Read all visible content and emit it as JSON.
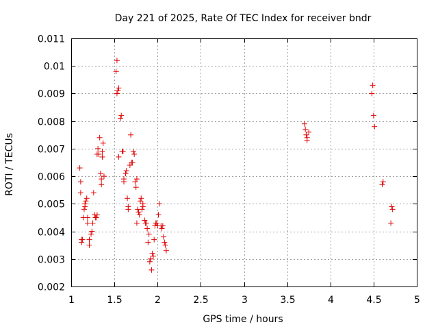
{
  "chart_data": {
    "type": "scatter",
    "title": "Day 221 of 2025, Rate Of TEC Index for receiver bndr",
    "xlabel": "GPS time / hours",
    "ylabel": "ROTI / TECUs",
    "xlim": [
      1,
      5
    ],
    "ylim": [
      0.002,
      0.011
    ],
    "grid": true,
    "marker": "+",
    "color": "#e00000",
    "x_ticks": [
      1,
      1.5,
      2,
      2.5,
      3,
      3.5,
      4,
      4.5,
      5
    ],
    "x_tick_labels": [
      "1",
      "1.5",
      "2",
      "2.5",
      "3",
      "3.5",
      "4",
      "4.5",
      "5"
    ],
    "y_ticks": [
      0.002,
      0.003,
      0.004,
      0.005,
      0.006,
      0.007,
      0.008,
      0.009,
      0.01,
      0.011
    ],
    "y_tick_labels": [
      "0.002",
      "0.003",
      "0.004",
      "0.005",
      "0.006",
      "0.007",
      "0.008",
      "0.009",
      "0.01",
      "0.011"
    ],
    "series": [
      {
        "name": "ROTI",
        "points": [
          [
            1.1,
            0.0063
          ],
          [
            1.11,
            0.0058
          ],
          [
            1.11,
            0.0054
          ],
          [
            1.12,
            0.0037
          ],
          [
            1.12,
            0.0036
          ],
          [
            1.13,
            0.0037
          ],
          [
            1.14,
            0.0045
          ],
          [
            1.15,
            0.0048
          ],
          [
            1.16,
            0.0049
          ],
          [
            1.16,
            0.005
          ],
          [
            1.17,
            0.0051
          ],
          [
            1.18,
            0.0052
          ],
          [
            1.19,
            0.0045
          ],
          [
            1.19,
            0.0043
          ],
          [
            1.21,
            0.0037
          ],
          [
            1.21,
            0.0035
          ],
          [
            1.23,
            0.0039
          ],
          [
            1.24,
            0.004
          ],
          [
            1.25,
            0.0043
          ],
          [
            1.26,
            0.0054
          ],
          [
            1.27,
            0.0046
          ],
          [
            1.28,
            0.0045
          ],
          [
            1.29,
            0.0045
          ],
          [
            1.3,
            0.0046
          ],
          [
            1.3,
            0.0068
          ],
          [
            1.31,
            0.007
          ],
          [
            1.32,
            0.0068
          ],
          [
            1.33,
            0.0074
          ],
          [
            1.34,
            0.0061
          ],
          [
            1.35,
            0.0059
          ],
          [
            1.35,
            0.0057
          ],
          [
            1.36,
            0.0069
          ],
          [
            1.36,
            0.0067
          ],
          [
            1.37,
            0.0072
          ],
          [
            1.38,
            0.006
          ],
          [
            1.52,
            0.0098
          ],
          [
            1.53,
            0.0102
          ],
          [
            1.53,
            0.009
          ],
          [
            1.54,
            0.0091
          ],
          [
            1.55,
            0.0092
          ],
          [
            1.55,
            0.0067
          ],
          [
            1.57,
            0.0081
          ],
          [
            1.58,
            0.0082
          ],
          [
            1.59,
            0.0069
          ],
          [
            1.6,
            0.0069
          ],
          [
            1.61,
            0.0059
          ],
          [
            1.61,
            0.0058
          ],
          [
            1.63,
            0.0061
          ],
          [
            1.64,
            0.0062
          ],
          [
            1.65,
            0.0052
          ],
          [
            1.66,
            0.0049
          ],
          [
            1.66,
            0.0048
          ],
          [
            1.68,
            0.0064
          ],
          [
            1.69,
            0.0075
          ],
          [
            1.7,
            0.0065
          ],
          [
            1.71,
            0.0065
          ],
          [
            1.72,
            0.0069
          ],
          [
            1.73,
            0.0068
          ],
          [
            1.74,
            0.0058
          ],
          [
            1.75,
            0.0056
          ],
          [
            1.76,
            0.0059
          ],
          [
            1.76,
            0.0043
          ],
          [
            1.77,
            0.0048
          ],
          [
            1.78,
            0.0047
          ],
          [
            1.79,
            0.0046
          ],
          [
            1.8,
            0.0051
          ],
          [
            1.81,
            0.0052
          ],
          [
            1.82,
            0.0048
          ],
          [
            1.83,
            0.0049
          ],
          [
            1.83,
            0.005
          ],
          [
            1.85,
            0.0044
          ],
          [
            1.86,
            0.0043
          ],
          [
            1.87,
            0.0043
          ],
          [
            1.88,
            0.0041
          ],
          [
            1.89,
            0.0036
          ],
          [
            1.9,
            0.0039
          ],
          [
            1.91,
            0.0029
          ],
          [
            1.92,
            0.003
          ],
          [
            1.93,
            0.0026
          ],
          [
            1.94,
            0.0032
          ],
          [
            1.95,
            0.0031
          ],
          [
            1.96,
            0.0037
          ],
          [
            1.97,
            0.0042
          ],
          [
            1.98,
            0.0043
          ],
          [
            1.99,
            0.0043
          ],
          [
            2.0,
            0.0042
          ],
          [
            2.01,
            0.0046
          ],
          [
            2.02,
            0.005
          ],
          [
            2.04,
            0.0042
          ],
          [
            2.05,
            0.0041
          ],
          [
            2.06,
            0.0042
          ],
          [
            2.07,
            0.0038
          ],
          [
            2.08,
            0.0036
          ],
          [
            2.09,
            0.0035
          ],
          [
            2.1,
            0.0033
          ],
          [
            3.7,
            0.0079
          ],
          [
            3.71,
            0.0077
          ],
          [
            3.72,
            0.0075
          ],
          [
            3.73,
            0.0074
          ],
          [
            3.73,
            0.0073
          ],
          [
            3.75,
            0.0076
          ],
          [
            4.48,
            0.009
          ],
          [
            4.49,
            0.0093
          ],
          [
            4.5,
            0.0082
          ],
          [
            4.51,
            0.0078
          ],
          [
            4.6,
            0.0057
          ],
          [
            4.61,
            0.0058
          ],
          [
            4.7,
            0.0043
          ],
          [
            4.71,
            0.0049
          ],
          [
            4.72,
            0.0048
          ]
        ]
      }
    ]
  }
}
